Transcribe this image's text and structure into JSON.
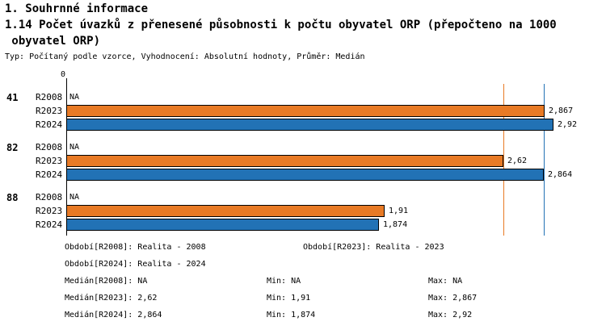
{
  "header": {
    "title": "1. Souhrnné informace",
    "subtitle_line1": "1.14 Počet úvazků z přenesené působnosti k počtu obyvatel ORP (přepočteno na 1000",
    "subtitle_line2": " obyvatel ORP)",
    "meta": "Typ: Počítaný podle vzorce, Vyhodnocení: Absolutní hodnoty, Průměr: Medián"
  },
  "chart_data": {
    "type": "bar",
    "orientation": "horizontal",
    "title": "1.14 Počet úvazků z přenesené působnosti k počtu obyvatel ORP (přepočteno na 1000 obyvatel ORP)",
    "xlabel": "",
    "ylabel": "",
    "xlim": [
      0,
      3.0
    ],
    "axis_origin_label": "0",
    "grid": false,
    "series_order": [
      "R2008",
      "R2023",
      "R2024"
    ],
    "series_colors": {
      "R2008": "#888888",
      "R2023": "#E87A25",
      "R2024": "#2272B5"
    },
    "groups": [
      {
        "label": "41",
        "rows": [
          {
            "series": "R2008",
            "value": null,
            "display": "NA"
          },
          {
            "series": "R2023",
            "value": 2.867,
            "display": "2,867"
          },
          {
            "series": "R2024",
            "value": 2.92,
            "display": "2,92"
          }
        ]
      },
      {
        "label": "82",
        "rows": [
          {
            "series": "R2008",
            "value": null,
            "display": "NA"
          },
          {
            "series": "R2023",
            "value": 2.62,
            "display": "2,62"
          },
          {
            "series": "R2024",
            "value": 2.864,
            "display": "2,864"
          }
        ]
      },
      {
        "label": "88",
        "rows": [
          {
            "series": "R2008",
            "value": null,
            "display": "NA"
          },
          {
            "series": "R2023",
            "value": 1.91,
            "display": "1,91"
          },
          {
            "series": "R2024",
            "value": 1.874,
            "display": "1,874"
          }
        ]
      }
    ],
    "reference_lines": [
      {
        "series": "R2023",
        "value": 2.62,
        "color": "#E87A25",
        "meaning": "Medián R2023"
      },
      {
        "series": "R2024",
        "value": 2.864,
        "color": "#2272B5",
        "meaning": "Medián R2024"
      }
    ]
  },
  "footer": {
    "rows": [
      {
        "c1": "Období[R2008]: Realita - 2008",
        "c2": "Období[R2023]: Realita - 2023"
      },
      {
        "c1": "Období[R2024]: Realita - 2024"
      },
      {
        "c1": "Medián[R2008]: NA",
        "c2": "Min: NA",
        "c3": "Max: NA"
      },
      {
        "c1": "Medián[R2023]: 2,62",
        "c2": "Min: 1,91",
        "c3": "Max: 2,867"
      },
      {
        "c1": "Medián[R2024]: 2,864",
        "c2": "Min: 1,874",
        "c3": "Max: 2,92"
      }
    ]
  }
}
